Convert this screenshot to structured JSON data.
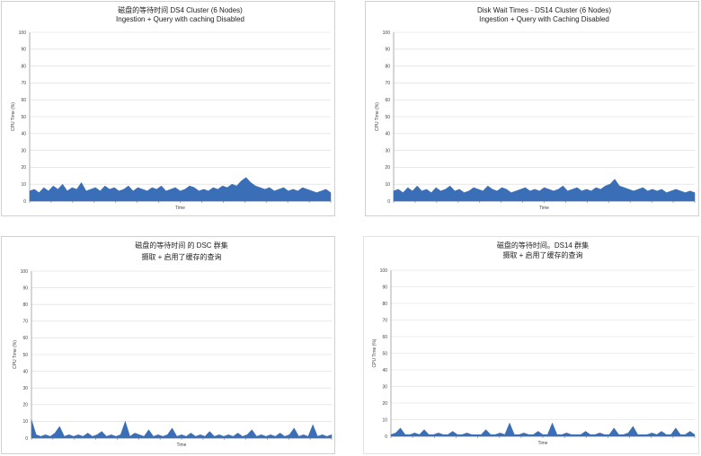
{
  "chart_data": [
    {
      "type": "area",
      "title": "磁盘的等待时间 DS4 Cluster (6 Nodes)",
      "subtitle": "Ingestion + Query with caching Disabled",
      "xlabel": "Time",
      "ylabel": "CPU Time (%)",
      "ylim": [
        0,
        100
      ],
      "yticks": [
        "0",
        "10",
        "20",
        "30",
        "40",
        "50",
        "60",
        "70",
        "80",
        "90",
        "100"
      ],
      "grid": true,
      "color": "#3a6fb7",
      "series": [
        {
          "values": [
            6,
            7,
            5,
            8,
            6,
            9,
            7,
            10,
            6,
            8,
            7,
            11,
            6,
            7,
            8,
            6,
            9,
            7,
            8,
            6,
            7,
            9,
            6,
            8,
            7,
            6,
            8,
            7,
            9,
            6,
            7,
            8,
            6,
            7,
            9,
            8,
            6,
            7,
            6,
            8,
            7,
            9,
            8,
            10,
            9,
            12,
            14,
            11,
            9,
            8,
            7,
            8,
            6,
            7,
            8,
            6,
            7,
            6,
            8,
            7,
            6,
            5,
            6,
            7,
            5
          ]
        }
      ]
    },
    {
      "type": "area",
      "title": "Disk Wait Times - DS14 Cluster (6 Nodes)",
      "subtitle": "Ingestion + Query with Caching Disabled",
      "xlabel": "Time",
      "ylabel": "CPU Time (%)",
      "ylim": [
        0,
        100
      ],
      "yticks": [
        "0",
        "10",
        "20",
        "30",
        "40",
        "50",
        "60",
        "70",
        "80",
        "90",
        "100"
      ],
      "grid": true,
      "color": "#3a6fb7",
      "series": [
        {
          "values": [
            6,
            7,
            5,
            8,
            6,
            9,
            6,
            7,
            5,
            8,
            6,
            7,
            9,
            6,
            7,
            5,
            6,
            8,
            7,
            6,
            9,
            7,
            6,
            8,
            7,
            5,
            6,
            7,
            8,
            6,
            7,
            6,
            8,
            7,
            6,
            7,
            9,
            6,
            7,
            8,
            6,
            7,
            6,
            8,
            7,
            9,
            10,
            13,
            9,
            8,
            7,
            6,
            7,
            8,
            6,
            7,
            6,
            7,
            5,
            6,
            7,
            6,
            5,
            6,
            5
          ]
        }
      ]
    },
    {
      "type": "area",
      "title": "磁盘的等待时间 的 DSC 群集",
      "subtitle": "摄取 + 启用了缓存的查询",
      "xlabel": "Time",
      "ylabel": "CPU Time (%)",
      "ylim": [
        0,
        100
      ],
      "yticks": [
        "0",
        "10",
        "20",
        "30",
        "40",
        "50",
        "60",
        "70",
        "80",
        "90",
        "100"
      ],
      "grid": true,
      "color": "#3a6fb7",
      "series": [
        {
          "values": [
            11,
            2,
            1,
            2,
            1,
            3,
            7,
            1,
            2,
            1,
            2,
            1,
            3,
            1,
            2,
            4,
            1,
            2,
            1,
            2,
            10,
            1,
            3,
            2,
            1,
            5,
            1,
            2,
            1,
            2,
            6,
            1,
            2,
            1,
            3,
            1,
            2,
            1,
            4,
            1,
            2,
            1,
            2,
            1,
            3,
            1,
            2,
            5,
            1,
            2,
            1,
            2,
            1,
            3,
            1,
            2,
            6,
            1,
            2,
            1,
            8,
            1,
            2,
            1,
            2
          ]
        }
      ]
    },
    {
      "type": "area",
      "title": "磁盘的等待时间。DS14 群集",
      "subtitle": "摄取         + 启用了缓存的查询",
      "xlabel": "Time",
      "ylabel": "CPU Time (%)",
      "ylim": [
        0,
        100
      ],
      "yticks": [
        "0",
        "10",
        "20",
        "30",
        "40",
        "50",
        "60",
        "70",
        "80",
        "90",
        "100"
      ],
      "grid": true,
      "color": "#3a6fb7",
      "series": [
        {
          "values": [
            1,
            2,
            5,
            1,
            1,
            2,
            1,
            4,
            1,
            1,
            2,
            1,
            1,
            3,
            1,
            1,
            2,
            1,
            1,
            1,
            4,
            1,
            1,
            2,
            1,
            8,
            1,
            1,
            2,
            1,
            1,
            3,
            1,
            1,
            8,
            1,
            1,
            2,
            1,
            1,
            1,
            3,
            1,
            1,
            2,
            1,
            1,
            5,
            1,
            1,
            2,
            6,
            1,
            1,
            1,
            2,
            1,
            3,
            1,
            1,
            5,
            1,
            1,
            3,
            1
          ]
        }
      ]
    }
  ]
}
